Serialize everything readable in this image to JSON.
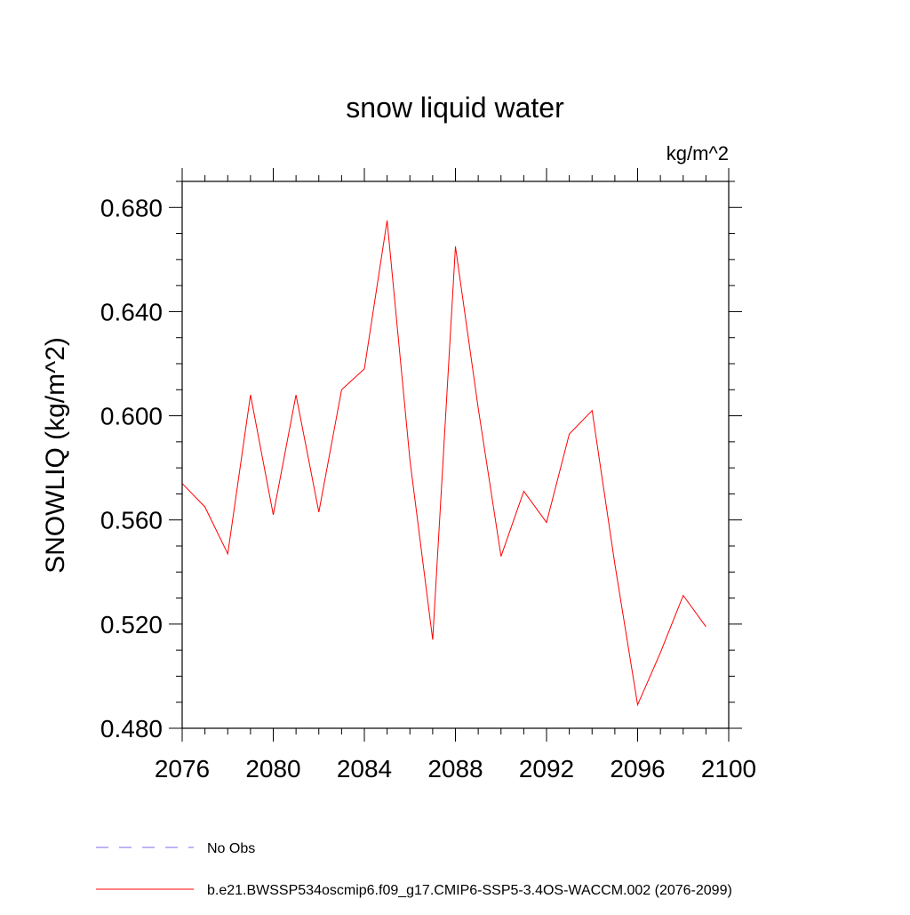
{
  "chart_data": {
    "type": "line",
    "title": "snow liquid water",
    "units_label": "kg/m^2",
    "ylabel": "SNOWLIQ  (kg/m^2)",
    "xlabel": "",
    "xlim": [
      2076,
      2100
    ],
    "ylim": [
      0.48,
      0.69
    ],
    "x_ticks": [
      2076,
      2080,
      2084,
      2088,
      2092,
      2096,
      2100
    ],
    "x_tick_labels": [
      "2076",
      "2080",
      "2084",
      "2088",
      "2092",
      "2096",
      "2100"
    ],
    "y_ticks": [
      0.48,
      0.52,
      0.56,
      0.6,
      0.64,
      0.68
    ],
    "y_tick_labels": [
      "0.480",
      "0.520",
      "0.560",
      "0.600",
      "0.640",
      "0.680"
    ],
    "series": [
      {
        "name": "b.e21.BWSSP534oscmip6.f09_g17.CMIP6-SSP5-3.4OS-WACCM.002 (2076-2099)",
        "color": "#ff0000",
        "x": [
          2076,
          2077,
          2078,
          2079,
          2080,
          2081,
          2082,
          2083,
          2084,
          2085,
          2086,
          2087,
          2088,
          2089,
          2090,
          2091,
          2092,
          2093,
          2094,
          2095,
          2096,
          2097,
          2098,
          2099
        ],
        "values": [
          0.574,
          0.565,
          0.547,
          0.608,
          0.562,
          0.608,
          0.563,
          0.61,
          0.618,
          0.675,
          0.583,
          0.514,
          0.665,
          0.603,
          0.546,
          0.571,
          0.559,
          0.593,
          0.602,
          0.543,
          0.489,
          0.509,
          0.531,
          0.519
        ]
      }
    ],
    "legend": [
      {
        "label": "No Obs",
        "color": "#7b68ee",
        "style": "dashed"
      },
      {
        "label": "b.e21.BWSSP534oscmip6.f09_g17.CMIP6-SSP5-3.4OS-WACCM.002 (2076-2099)",
        "color": "#ff0000",
        "style": "solid"
      }
    ]
  }
}
